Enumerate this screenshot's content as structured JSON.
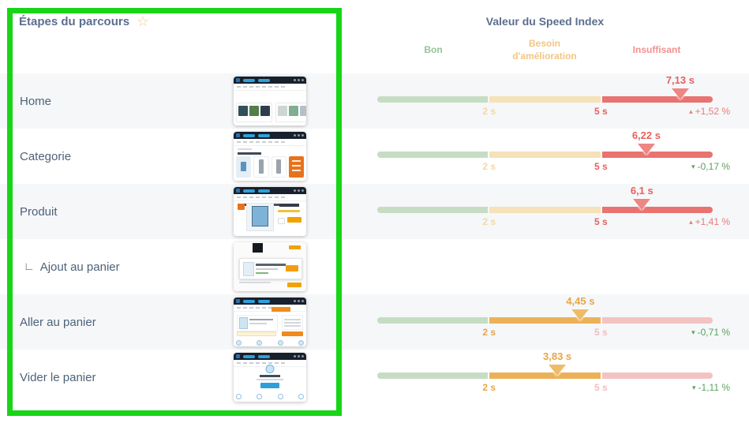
{
  "left_panel": {
    "title": "Étapes du parcours"
  },
  "right_panel": {
    "title": "Valeur du Speed Index",
    "zones": [
      {
        "label": "Bon"
      },
      {
        "label": "Besoin d'amélioration"
      },
      {
        "label": "Insuffisant"
      }
    ]
  },
  "scale": {
    "unit": "s",
    "min": 0,
    "max": 8,
    "segments": [
      {
        "from": 0,
        "to": 2,
        "zone": "good"
      },
      {
        "from": 2,
        "to": 5,
        "zone": "needs-improvement"
      },
      {
        "from": 5,
        "to": 8,
        "zone": "poor"
      }
    ],
    "boundaries": [
      {
        "label": "2 s",
        "value": 2
      },
      {
        "label": "5 s",
        "value": 5
      }
    ]
  },
  "rows": [
    {
      "label": "Home",
      "thumbnail": "homepage",
      "gauge": {
        "value_label": "7,13 s",
        "value_seconds": 7.13,
        "zone": "red",
        "trend": {
          "label": "+1,52 %",
          "direction": "up",
          "color": "red"
        }
      }
    },
    {
      "label": "Categorie",
      "thumbnail": "category-listing",
      "gauge": {
        "value_label": "6,22 s",
        "value_seconds": 6.22,
        "zone": "red",
        "trend": {
          "label": "-0,17 %",
          "direction": "down",
          "color": "green"
        }
      }
    },
    {
      "label": "Produit",
      "thumbnail": "product-page",
      "gauge": {
        "value_label": "6,1 s",
        "value_seconds": 6.1,
        "zone": "red",
        "trend": {
          "label": "+1,41 %",
          "direction": "up",
          "color": "red"
        }
      }
    },
    {
      "label": "Ajout au panier",
      "prefix": "∟",
      "thumbnail": "add-to-cart-modal",
      "gauge": null
    },
    {
      "label": "Aller au panier",
      "thumbnail": "cart-page",
      "gauge": {
        "value_label": "4,45 s",
        "value_seconds": 4.45,
        "zone": "orange",
        "trend": {
          "label": "-0,71 %",
          "direction": "down",
          "color": "green"
        }
      }
    },
    {
      "label": "Vider le panier",
      "thumbnail": "empty-cart-page",
      "gauge": {
        "value_label": "3,83 s",
        "value_seconds": 3.83,
        "zone": "orange",
        "trend": {
          "label": "-1,11 %",
          "direction": "down",
          "color": "green"
        }
      }
    }
  ],
  "icons": {
    "star": "☆",
    "trend-up": "▴",
    "trend-down": "▾",
    "step-branch": "∟"
  },
  "colors": {
    "highlight-green": "#17d517",
    "heading": "#5b6e8e",
    "row-label": "#4e6279",
    "row-alt-bg": "#f5f7f9",
    "zone-bon": "#93c493",
    "zone-besoin": "#f2c682",
    "zone-insuffisant": "#f09290",
    "seg-green-muted": "#c6ddc3",
    "seg-yellow-muted": "#f5e2b8",
    "seg-amber": "#ecb158",
    "seg-red": "#e87370",
    "seg-pink-muted": "#f3c3c2",
    "text-red": "#e5625f",
    "text-amber": "#e7a64a",
    "text-tan": "#f2d8a6",
    "text-pink": "#f4bcbb",
    "marker-red": "#ee8684",
    "marker-amber": "#eebc69",
    "trend-red": "#e87a78",
    "trend-green": "#5ba25e",
    "star": "#efcf8f"
  }
}
